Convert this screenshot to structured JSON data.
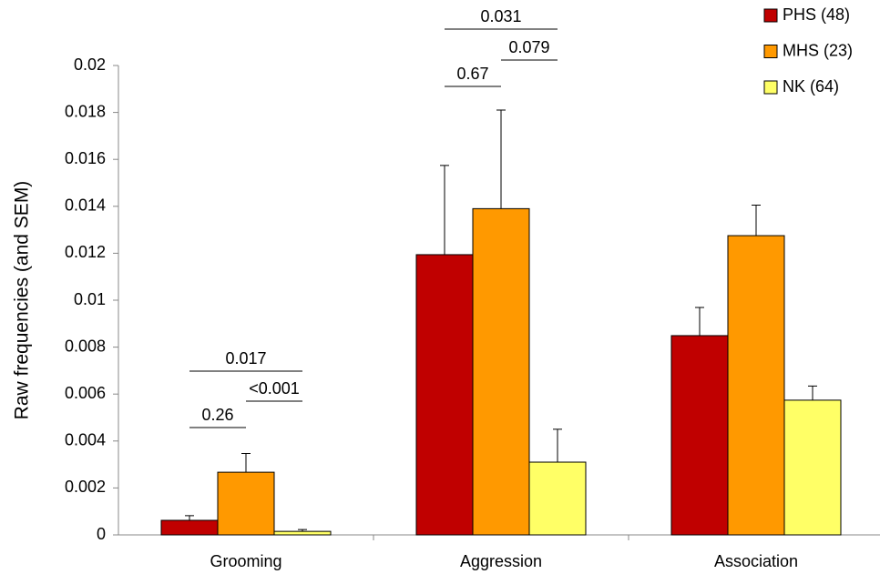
{
  "chart_data": {
    "type": "bar",
    "y_label": "Raw frequencies (and SEM)",
    "categories": [
      "Grooming",
      "Aggression",
      "Association"
    ],
    "series": [
      {
        "name": "PHS (48)",
        "color": "#c00000",
        "values": [
          0.00062,
          0.01194,
          0.00849
        ],
        "errors": [
          0.0002,
          0.0038,
          0.0012
        ]
      },
      {
        "name": "MHS (23)",
        "color": "#ff9900",
        "values": [
          0.00267,
          0.0139,
          0.01275
        ],
        "errors": [
          0.0008,
          0.0042,
          0.0013
        ]
      },
      {
        "name": "NK (64)",
        "color": "#ffff66",
        "values": [
          0.00015,
          0.0031,
          0.00574
        ],
        "errors": [
          8e-05,
          0.0014,
          0.0006
        ]
      }
    ],
    "ylim": [
      0,
      0.02
    ],
    "yticks": [
      0,
      0.002,
      0.004,
      0.006,
      0.008,
      0.01,
      0.012,
      0.014,
      0.016,
      0.018,
      0.02
    ],
    "legend": "top-right",
    "annotations": [
      {
        "text": "0.017",
        "category": 0,
        "from": 0,
        "to": 2
      },
      {
        "text": "<0.001",
        "category": 0,
        "from": 1,
        "to": 2
      },
      {
        "text": "0.26",
        "category": 0,
        "from": 0,
        "to": 1
      },
      {
        "text": "0.031",
        "category": 1,
        "from": 0,
        "to": 2
      },
      {
        "text": "0.079",
        "category": 1,
        "from": 1,
        "to": 2
      },
      {
        "text": "0.67",
        "category": 1,
        "from": 0,
        "to": 1
      }
    ]
  }
}
